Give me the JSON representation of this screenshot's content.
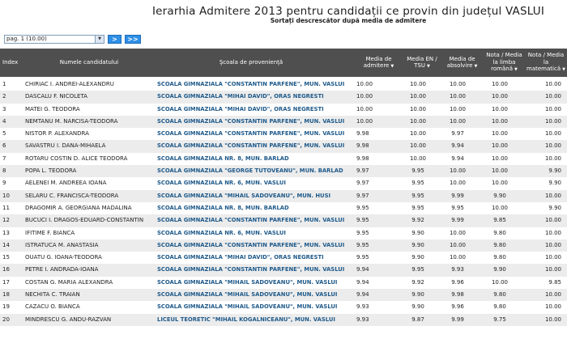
{
  "title": "Ierarhia Admitere 2013 pentru candidații ce provin din județul VASLUI",
  "subtitle": "Sortați descrescător după media de admitere",
  "pager": {
    "selected": "pag. 1 (10.00)",
    "next_label": ">",
    "last_label": ">>"
  },
  "colors": {
    "header_bg": "#4f4f4f",
    "school_link": "#1f5a8a",
    "nav_button": "#2e8fe6"
  },
  "columns": {
    "index": "Index",
    "name": "Numele candidatului",
    "school": "Şcoala de provenienţă",
    "admitere": "Media de admitere",
    "en": "Media EN / TSU",
    "absolvire": "Media de absolvire",
    "romana": "Nota / Media la limba română",
    "matematica": "Nota / Media la matematică"
  },
  "rows": [
    {
      "idx": "1",
      "name": "CHIRIAC I. ANDREI-ALEXANDRU",
      "school": "SCOALA GIMNAZIALA \"CONSTANTIN PARFENE\", MUN. VASLUI",
      "adm": "10.00",
      "en": "10.00",
      "abs": "10.00",
      "rom": "10.00",
      "mat": "10.00"
    },
    {
      "idx": "2",
      "name": "DASCALU F. NICOLETA",
      "school": "SCOALA GIMNAZIALA \"MIHAI DAVID\", ORAS NEGRESTI",
      "adm": "10.00",
      "en": "10.00",
      "abs": "10.00",
      "rom": "10.00",
      "mat": "10.00"
    },
    {
      "idx": "3",
      "name": "MATEI G. TEODORA",
      "school": "SCOALA GIMNAZIALA \"MIHAI DAVID\", ORAS NEGRESTI",
      "adm": "10.00",
      "en": "10.00",
      "abs": "10.00",
      "rom": "10.00",
      "mat": "10.00"
    },
    {
      "idx": "4",
      "name": "NEMTANU M. NARCISA-TEODORA",
      "school": "SCOALA GIMNAZIALA \"CONSTANTIN PARFENE\", MUN. VASLUI",
      "adm": "10.00",
      "en": "10.00",
      "abs": "10.00",
      "rom": "10.00",
      "mat": "10.00"
    },
    {
      "idx": "5",
      "name": "NISTOR P. ALEXANDRA",
      "school": "SCOALA GIMNAZIALA \"CONSTANTIN PARFENE\", MUN. VASLUI",
      "adm": "9.98",
      "en": "10.00",
      "abs": "9.97",
      "rom": "10.00",
      "mat": "10.00"
    },
    {
      "idx": "6",
      "name": "SAVASTRU I. DANA-MIHAELA",
      "school": "SCOALA GIMNAZIALA \"CONSTANTIN PARFENE\", MUN. VASLUI",
      "adm": "9.98",
      "en": "10.00",
      "abs": "9.94",
      "rom": "10.00",
      "mat": "10.00"
    },
    {
      "idx": "7",
      "name": "ROTARU COSTIN D. ALICE TEODORA",
      "school": "SCOALA GIMNAZIALA NR. 8, MUN. BARLAD",
      "adm": "9.98",
      "en": "10.00",
      "abs": "9.94",
      "rom": "10.00",
      "mat": "10.00"
    },
    {
      "idx": "8",
      "name": "POPA L. TEODORA",
      "school": "SCOALA GIMNAZIALA \"GEORGE TUTOVEANU\", MUN. BARLAD",
      "adm": "9.97",
      "en": "9.95",
      "abs": "10.00",
      "rom": "10.00",
      "mat": "9.90"
    },
    {
      "idx": "9",
      "name": "AELENEI M. ANDREEA IOANA",
      "school": "SCOALA GIMNAZIALA NR. 6, MUN. VASLUI",
      "adm": "9.97",
      "en": "9.95",
      "abs": "10.00",
      "rom": "10.00",
      "mat": "9.90"
    },
    {
      "idx": "10",
      "name": "SELARU C. FRANCISCA-TEODORA",
      "school": "SCOALA GIMNAZIALA \"MIHAIL SADOVEANU\", MUN. HUSI",
      "adm": "9.97",
      "en": "9.95",
      "abs": "9.99",
      "rom": "9.90",
      "mat": "10.00"
    },
    {
      "idx": "11",
      "name": "DRAGOMIR A. GEORGIANA MADALINA",
      "school": "SCOALA GIMNAZIALA NR. 8, MUN. BARLAD",
      "adm": "9.95",
      "en": "9.95",
      "abs": "9.95",
      "rom": "10.00",
      "mat": "9.90"
    },
    {
      "idx": "12",
      "name": "BUCUCI I. DRAGOS-EDUARD-CONSTANTIN",
      "school": "SCOALA GIMNAZIALA \"CONSTANTIN PARFENE\", MUN. VASLUI",
      "adm": "9.95",
      "en": "9.92",
      "abs": "9.99",
      "rom": "9.85",
      "mat": "10.00"
    },
    {
      "idx": "13",
      "name": "IFITIME F. BIANCA",
      "school": "SCOALA GIMNAZIALA NR. 6, MUN. VASLUI",
      "adm": "9.95",
      "en": "9.90",
      "abs": "10.00",
      "rom": "9.80",
      "mat": "10.00"
    },
    {
      "idx": "14",
      "name": "ISTRATUCA M. ANASTASIA",
      "school": "SCOALA GIMNAZIALA \"CONSTANTIN PARFENE\", MUN. VASLUI",
      "adm": "9.95",
      "en": "9.90",
      "abs": "10.00",
      "rom": "9.80",
      "mat": "10.00"
    },
    {
      "idx": "15",
      "name": "OUATU G. IOANA-TEODORA",
      "school": "SCOALA GIMNAZIALA \"MIHAI DAVID\", ORAS NEGRESTI",
      "adm": "9.95",
      "en": "9.90",
      "abs": "10.00",
      "rom": "9.80",
      "mat": "10.00"
    },
    {
      "idx": "16",
      "name": "PETRE I. ANDRADA-IOANA",
      "school": "SCOALA GIMNAZIALA \"CONSTANTIN PARFENE\", MUN. VASLUI",
      "adm": "9.94",
      "en": "9.95",
      "abs": "9.93",
      "rom": "9.90",
      "mat": "10.00"
    },
    {
      "idx": "17",
      "name": "COSTAN G. MARIA ALEXANDRA",
      "school": "SCOALA GIMNAZIALA \"MIHAIL SADOVEANU\", MUN. VASLUI",
      "adm": "9.94",
      "en": "9.92",
      "abs": "9.96",
      "rom": "10.00",
      "mat": "9.85"
    },
    {
      "idx": "18",
      "name": "NECHITA C. TRAIAN",
      "school": "SCOALA GIMNAZIALA \"MIHAIL SADOVEANU\", MUN. VASLUI",
      "adm": "9.94",
      "en": "9.90",
      "abs": "9.98",
      "rom": "9.80",
      "mat": "10.00"
    },
    {
      "idx": "19",
      "name": "CAZACU O. BIANCA",
      "school": "SCOALA GIMNAZIALA \"MIHAIL SADOVEANU\", MUN. VASLUI",
      "adm": "9.93",
      "en": "9.90",
      "abs": "9.96",
      "rom": "9.80",
      "mat": "10.00"
    },
    {
      "idx": "20",
      "name": "MINDRESCU G. ANDU-RAZVAN",
      "school": "LICEUL TEORETIC \"MIHAIL KOGALNICEANU\", MUN. VASLUI",
      "adm": "9.93",
      "en": "9.87",
      "abs": "9.99",
      "rom": "9.75",
      "mat": "10.00"
    }
  ]
}
